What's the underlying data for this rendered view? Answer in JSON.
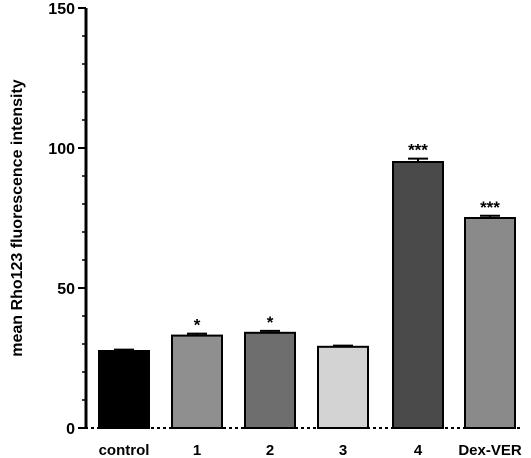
{
  "chart_data": {
    "type": "bar",
    "title": "",
    "xlabel": "",
    "ylabel": "mean Rho123 fluorescence intensity",
    "ylim": [
      0,
      150
    ],
    "yticks": [
      0,
      50,
      100,
      150
    ],
    "categories": [
      "control",
      "1",
      "2",
      "3",
      "4",
      "Dex-VER"
    ],
    "values": [
      27.5,
      33,
      34,
      29,
      95,
      75
    ],
    "errors": [
      0.5,
      0.7,
      0.7,
      0.4,
      1.2,
      0.8
    ],
    "significance": [
      "",
      "*",
      "*",
      "",
      "***",
      "***"
    ],
    "bar_colors": [
      "#000000",
      "#8f8f8f",
      "#6e6e6e",
      "#d3d3d3",
      "#4a4a4a",
      "#8a8a8a"
    ],
    "grid": false,
    "legend": "none"
  }
}
